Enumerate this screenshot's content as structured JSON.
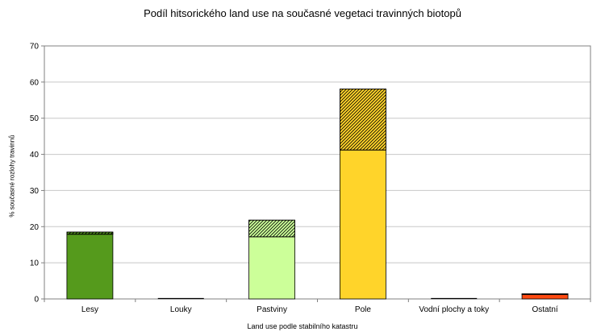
{
  "chart_data": {
    "type": "bar",
    "stacked": true,
    "title": "Podíl hitsorického land use na současné vegetaci travinných biotopů",
    "xlabel": "Land use podle stabilního katastru",
    "ylabel": "% současné rozlohy travinnů",
    "ylim": [
      0,
      70
    ],
    "yticks": [
      0,
      10,
      20,
      30,
      40,
      50,
      60,
      70
    ],
    "grid": true,
    "legend": "none",
    "categories": [
      "Lesy",
      "Louky",
      "Pastviny",
      "Pole",
      "Vodní plochy a toky",
      "Ostatní"
    ],
    "colors": [
      "#559a1c",
      "#c0c0c0",
      "#ccff99",
      "#ffd42a",
      "#c0c0c0",
      "#ff4b12"
    ],
    "series": [
      {
        "values": [
          17.9,
          0,
          17.2,
          41.2,
          0,
          1.2
        ],
        "pattern": "solid"
      },
      {
        "values": [
          0.6,
          0,
          4.6,
          16.9,
          0,
          0.2
        ],
        "pattern": "hatched"
      }
    ]
  }
}
